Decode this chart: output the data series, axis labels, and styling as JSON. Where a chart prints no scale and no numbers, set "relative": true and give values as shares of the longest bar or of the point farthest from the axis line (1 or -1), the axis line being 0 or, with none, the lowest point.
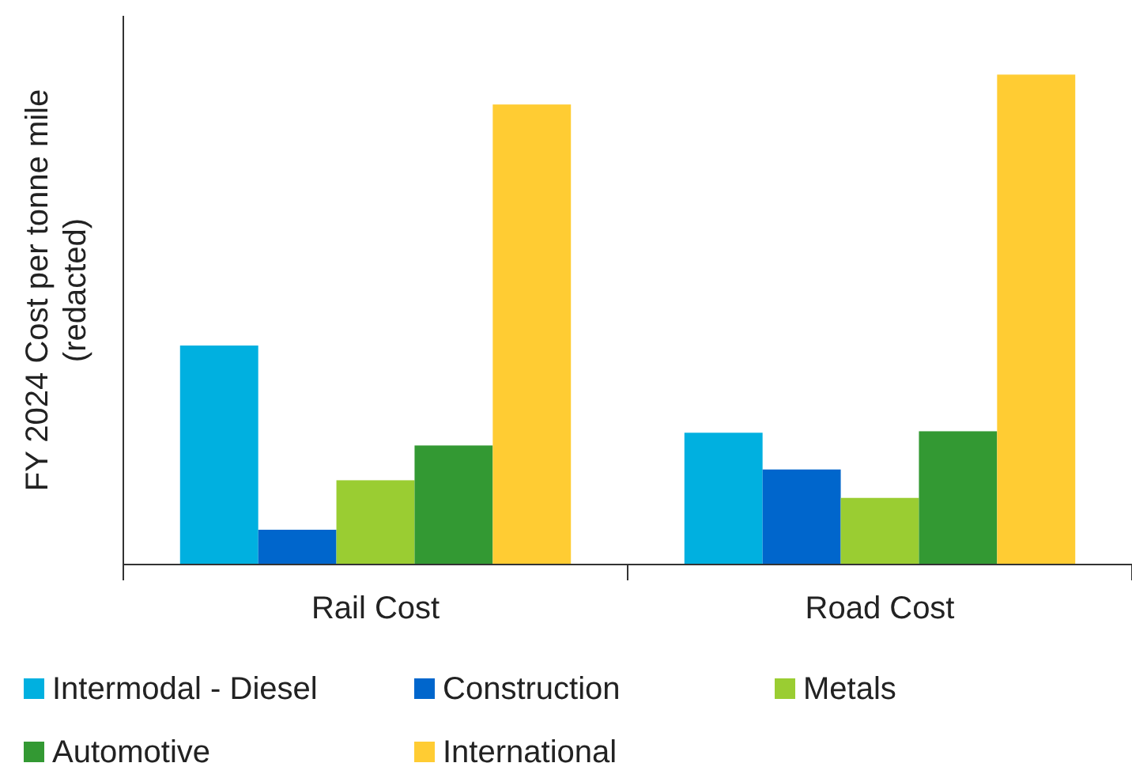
{
  "chart_data": {
    "type": "bar",
    "relative": true,
    "ylabel": "FY 2024 Cost per tonne mile (redacted)",
    "categories": [
      "Rail Cost",
      "Road Cost"
    ],
    "legend": "bottom",
    "series": [
      {
        "name": "Intermodal - Diesel",
        "color": "#00b0e0",
        "values": [
          0.447,
          0.269
        ]
      },
      {
        "name": "Construction",
        "color": "#0066cc",
        "values": [
          0.071,
          0.194
        ]
      },
      {
        "name": "Metals",
        "color": "#9acd32",
        "values": [
          0.172,
          0.136
        ]
      },
      {
        "name": "Automotive",
        "color": "#339933",
        "values": [
          0.243,
          0.272
        ]
      },
      {
        "name": "International",
        "color": "#ffcc33",
        "values": [
          0.939,
          1
        ]
      }
    ]
  }
}
